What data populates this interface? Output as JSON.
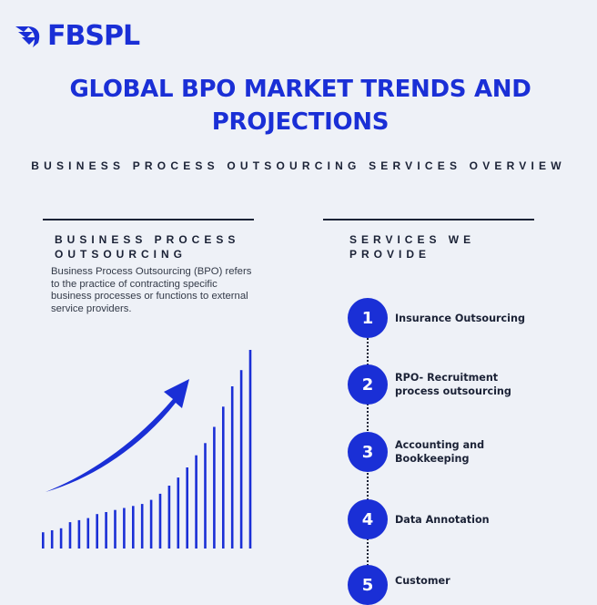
{
  "brand": {
    "name": "FBSPL",
    "color": "#1a2fd6"
  },
  "title": "GLOBAL BPO MARKET TRENDS AND PROJECTIONS",
  "subtitle": "BUSINESS PROCESS OUTSOURCING SERVICES OVERVIEW",
  "left_section": {
    "heading": "BUSINESS PROCESS OUTSOURCING",
    "description": "Business Process Outsourcing (BPO) refers to the practice of contracting specific business processes or functions to external service providers."
  },
  "right_section": {
    "heading": "SERVICES WE PROVIDE",
    "services": [
      {
        "number": "1",
        "label": "Insurance Outsourcing"
      },
      {
        "number": "2",
        "label": "RPO- Recruitment process outsourcing"
      },
      {
        "number": "3",
        "label": "Accounting and Bookkeeping"
      },
      {
        "number": "4",
        "label": "Data Annotation"
      },
      {
        "number": "5",
        "label": "Customer"
      }
    ]
  },
  "chart_data": {
    "type": "bar",
    "trend_arrow": "up-right",
    "values": [
      8,
      9,
      10,
      13,
      14,
      15,
      17,
      18,
      19,
      20,
      21,
      22,
      24,
      27,
      31,
      35,
      40,
      46,
      52,
      60,
      70,
      80,
      88,
      98
    ]
  }
}
